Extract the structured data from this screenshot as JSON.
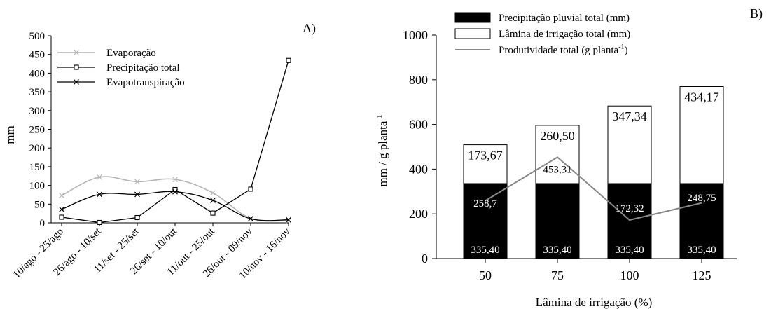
{
  "chart_data": [
    {
      "type": "line",
      "panel_label": "A)",
      "ylabel": "mm",
      "xlabel": "",
      "ylim": [
        0,
        500
      ],
      "yticks": [
        0,
        50,
        100,
        150,
        200,
        250,
        300,
        350,
        400,
        450,
        500
      ],
      "categories": [
        "10/ago - 25/ago",
        "26/ago - 10/set",
        "11/set - 25/set",
        "26/set - 10/out",
        "11/out - 25/out",
        "26/out - 09/nov",
        "10/nov - 16/nov"
      ],
      "grid": false,
      "legend_position": "upper-left",
      "series": [
        {
          "name": "Evaporação",
          "values": [
            73,
            122,
            110,
            116,
            80,
            12,
            6
          ],
          "color": "#b5b5b5",
          "marker": "x",
          "smooth": true
        },
        {
          "name": "Precipitação total",
          "values": [
            15,
            1,
            14,
            89,
            26,
            90,
            434
          ],
          "color": "#000000",
          "marker": "square",
          "smooth": false
        },
        {
          "name": "Evapotranspiração",
          "values": [
            36,
            76,
            76,
            83,
            60,
            11,
            8
          ],
          "color": "#000000",
          "marker": "x",
          "smooth": true
        }
      ]
    },
    {
      "type": "bar",
      "stacked": true,
      "panel_label": "B)",
      "xlabel": "Lâmina de irrigação (%)",
      "ylabel_main": "mm / g planta",
      "ylabel_sup": "-1",
      "ylim": [
        0,
        1000
      ],
      "yticks": [
        0,
        200,
        400,
        600,
        800,
        1000
      ],
      "categories": [
        "50",
        "75",
        "100",
        "125"
      ],
      "legend_position": "top",
      "series": [
        {
          "name": "Precipitação pluvial total (mm)",
          "values": [
            335.4,
            335.4,
            335.4,
            335.4
          ],
          "labels": [
            "335,40",
            "335,40",
            "335,40",
            "335,40"
          ],
          "color": "#000000"
        },
        {
          "name": "Lâmina de irrigação total (mm)",
          "values": [
            173.67,
            260.5,
            347.34,
            434.17
          ],
          "labels": [
            "173,67",
            "260,50",
            "347,34",
            "434,17"
          ],
          "color": "#ffffff"
        }
      ],
      "line_series": {
        "name_main": "Produtividade total (g planta",
        "name_sup": "-1",
        "name_tail": ")",
        "values": [
          258.7,
          453.31,
          172.32,
          248.75
        ],
        "labels": [
          "258,7",
          "453,31",
          "172,32",
          "248,75"
        ],
        "color": "#888888"
      }
    }
  ]
}
